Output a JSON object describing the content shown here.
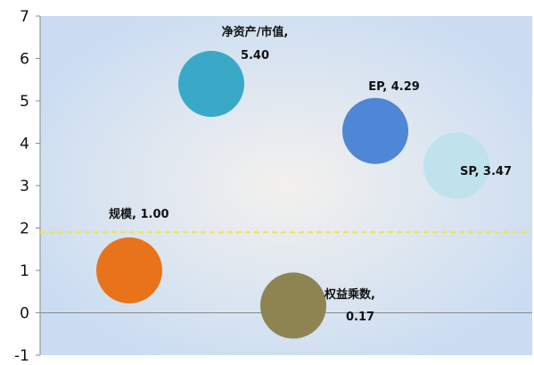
{
  "chart_data": {
    "type": "scatter",
    "subtype": "bubble",
    "title": "",
    "xlabel": "",
    "ylabel": "",
    "ylim": [
      -1,
      7
    ],
    "y_ticks": [
      "-1",
      "0",
      "1",
      "2",
      "3",
      "4",
      "5",
      "6",
      "7"
    ],
    "x_axis_visible": false,
    "reference_line": {
      "y": 1.9,
      "style": "dashed",
      "color": "#f5e33a"
    },
    "points": [
      {
        "name": "净资产/市值",
        "y": 5.4,
        "label_lines": [
          "净资产/市值,",
          "5.40"
        ],
        "color": "#3aa9c7"
      },
      {
        "name": "EP",
        "y": 4.29,
        "label_lines": [
          "EP, 4.29"
        ],
        "color": "#4f86d6"
      },
      {
        "name": "SP",
        "y": 3.47,
        "label_lines": [
          "SP, 3.47"
        ],
        "color": "#bfe2ec"
      },
      {
        "name": "规模",
        "y": 1.0,
        "label_lines": [
          "规模, 1.00"
        ],
        "color": "#e8731a"
      },
      {
        "name": "权益乘数",
        "y": 0.17,
        "label_lines": [
          "权益乘数,",
          "0.17"
        ],
        "color": "#8d8451"
      }
    ],
    "plot_background": "#dfe9f7"
  }
}
